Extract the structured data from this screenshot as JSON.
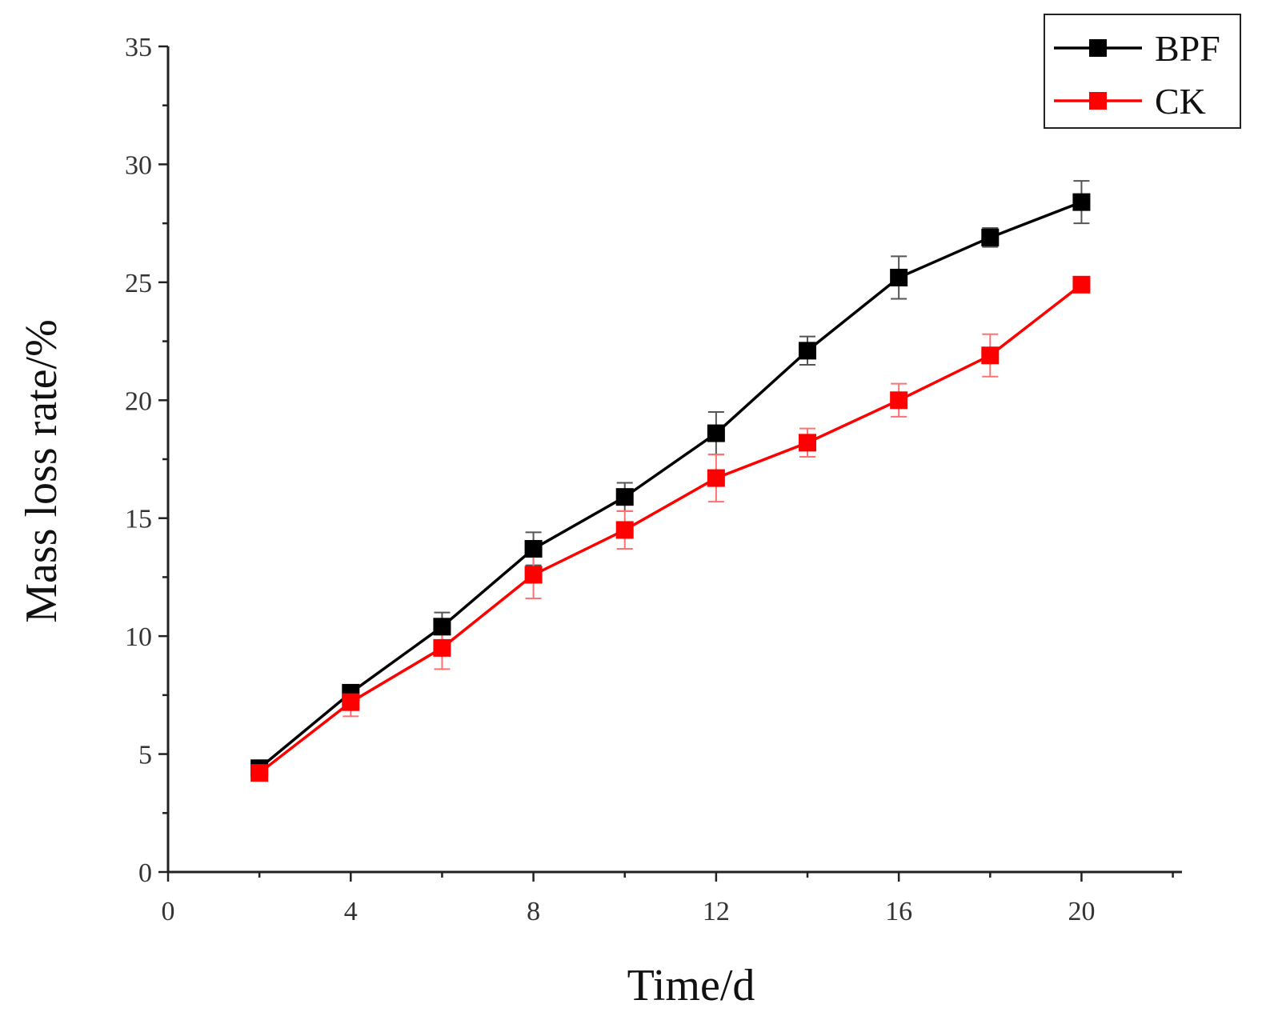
{
  "chart_data": {
    "type": "line",
    "title": "",
    "xlabel": "Time/d",
    "ylabel": "Mass loss rate/%",
    "xlim": [
      0,
      22.2
    ],
    "ylim": [
      0,
      35
    ],
    "x_ticks": [
      0,
      4,
      8,
      12,
      16,
      20
    ],
    "y_ticks": [
      0,
      5,
      10,
      15,
      20,
      25,
      30,
      35
    ],
    "x": [
      2,
      4,
      6,
      8,
      10,
      12,
      14,
      16,
      18,
      20
    ],
    "grid": false,
    "legend_position": "top-right",
    "series": [
      {
        "name": "BPF",
        "color": "#000000",
        "marker": "square",
        "values": [
          4.4,
          7.6,
          10.4,
          13.7,
          15.9,
          18.6,
          22.1,
          25.2,
          26.9,
          28.4
        ],
        "errors": [
          0.2,
          0.3,
          0.6,
          0.7,
          0.6,
          0.9,
          0.6,
          0.9,
          0.4,
          0.9
        ]
      },
      {
        "name": "CK",
        "color": "#ff0000",
        "marker": "square",
        "values": [
          4.2,
          7.2,
          9.5,
          12.6,
          14.5,
          16.7,
          18.2,
          20.0,
          21.9,
          24.9
        ],
        "errors": [
          0.2,
          0.6,
          0.9,
          1.0,
          0.8,
          1.0,
          0.6,
          0.7,
          0.9,
          0.2
        ]
      }
    ]
  }
}
